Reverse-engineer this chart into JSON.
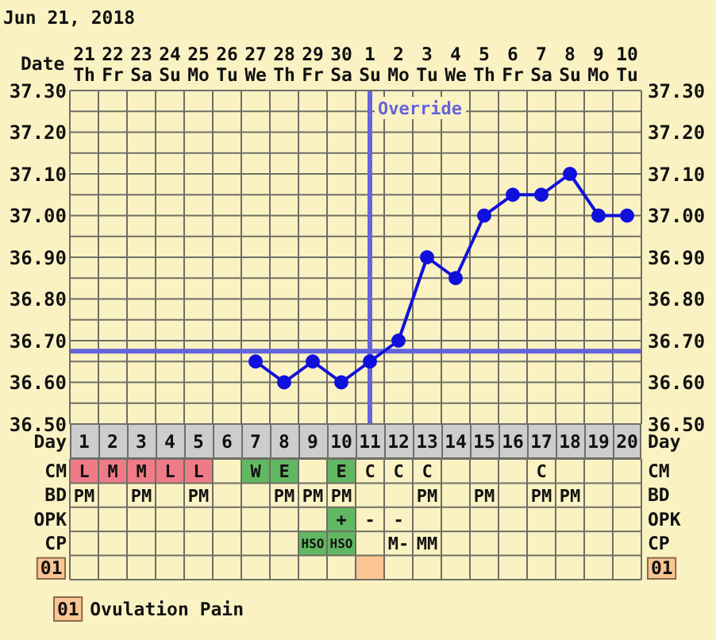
{
  "chart_data": [
    {
      "type": "line",
      "title": "Jun 21, 2018",
      "xlabel": "Day",
      "x2label": "Date",
      "x": [
        7,
        8,
        9,
        10,
        11,
        12,
        13,
        14,
        15,
        16,
        17,
        18,
        19,
        20
      ],
      "series": [
        {
          "color": "#1010dd",
          "values": [
            36.65,
            36.6,
            36.65,
            36.6,
            36.65,
            36.7,
            36.9,
            36.85,
            37.0,
            37.05,
            37.05,
            37.1,
            37.0,
            37.0
          ]
        }
      ],
      "xlim": [
        0.5,
        20.5
      ],
      "xticks": [
        1,
        2,
        3,
        4,
        5,
        6,
        7,
        8,
        9,
        10,
        11,
        12,
        13,
        14,
        15,
        16,
        17,
        18,
        19,
        20
      ],
      "x2lim": [
        "2018-06-20T12:00",
        "2018-07-10T12:00"
      ],
      "x2ticks": [
        {
          "value": "2018-06-21",
          "label": "21 Th"
        },
        {
          "value": "2018-06-22",
          "label": "22 Fr"
        },
        {
          "value": "2018-06-23",
          "label": "23 Sa"
        },
        {
          "value": "2018-06-24",
          "label": "24 Su"
        },
        {
          "value": "2018-06-25",
          "label": "25 Mo"
        },
        {
          "value": "2018-06-26",
          "label": "26 Tu"
        },
        {
          "value": "2018-06-27",
          "label": "27 We"
        },
        {
          "value": "2018-06-28",
          "label": "28 Th"
        },
        {
          "value": "2018-06-29",
          "label": "29 Fr"
        },
        {
          "value": "2018-06-30",
          "label": "30 Sa"
        },
        {
          "value": "2018-07-01",
          "label": "1 Su"
        },
        {
          "value": "2018-07-02",
          "label": "2 Mo"
        },
        {
          "value": "2018-07-03",
          "label": "3 Tu"
        },
        {
          "value": "2018-07-04",
          "label": "4 We"
        },
        {
          "value": "2018-07-05",
          "label": "5 Th"
        },
        {
          "value": "2018-07-06",
          "label": "6 Fr"
        },
        {
          "value": "2018-07-07",
          "label": "7 Sa"
        },
        {
          "value": "2018-07-08",
          "label": "8 Su"
        },
        {
          "value": "2018-07-09",
          "label": "9 Mo"
        },
        {
          "value": "2018-07-10",
          "label": "10 Tu"
        }
      ],
      "ylim": [
        36.5,
        37.3
      ],
      "yticks": [
        {
          "value": 36.5,
          "label": "36.50"
        },
        {
          "value": 36.55,
          "label": null
        },
        {
          "value": 36.6,
          "label": "36.60"
        },
        {
          "value": 36.65,
          "label": null
        },
        {
          "value": 36.7,
          "label": "36.70"
        },
        {
          "value": 36.75,
          "label": null
        },
        {
          "value": 36.8,
          "label": "36.80"
        },
        {
          "value": 36.85,
          "label": null
        },
        {
          "value": 36.9,
          "label": "36.90"
        },
        {
          "value": 36.95,
          "label": null
        },
        {
          "value": 37.0,
          "label": "37.00"
        },
        {
          "value": 37.05,
          "label": null
        },
        {
          "value": 37.1,
          "label": "37.10"
        },
        {
          "value": 37.15,
          "label": null
        },
        {
          "value": 37.2,
          "label": "37.20"
        },
        {
          "value": 37.25,
          "label": null
        },
        {
          "value": 37.3,
          "label": "37.30"
        }
      ],
      "y2lim": [
        36.5,
        37.3
      ],
      "y2ticks": [
        {
          "value": 36.5,
          "label": "36.50"
        },
        {
          "value": 36.55,
          "label": null
        },
        {
          "value": 36.6,
          "label": "36.60"
        },
        {
          "value": 36.65,
          "label": null
        },
        {
          "value": 36.7,
          "label": "36.70"
        },
        {
          "value": 36.75,
          "label": null
        },
        {
          "value": 36.8,
          "label": "36.80"
        },
        {
          "value": 36.85,
          "label": null
        },
        {
          "value": 36.9,
          "label": "36.90"
        },
        {
          "value": 36.95,
          "label": null
        },
        {
          "value": 37.0,
          "label": "37.00"
        },
        {
          "value": 37.05,
          "label": null
        },
        {
          "value": 37.1,
          "label": "37.10"
        },
        {
          "value": 37.15,
          "label": null
        },
        {
          "value": 37.2,
          "label": "37.20"
        },
        {
          "value": 37.25,
          "label": null
        },
        {
          "value": 37.3,
          "label": "37.30"
        }
      ],
      "grid": true,
      "marker": "circle",
      "ref_lines": [
        {
          "axis": "x",
          "value": 11,
          "label": "Override",
          "color": "#6464dc"
        },
        {
          "axis": "y",
          "value": 36.675,
          "label": null,
          "color": "#6464dc"
        }
      ]
    },
    {
      "type": "other",
      "y_categories": [
        "CM",
        "BD",
        "OPK",
        "CP",
        "01"
      ],
      "y2_categories": [
        "CM",
        "BD",
        "OPK",
        "CP",
        "01"
      ],
      "cell_labels": [
        [
          "L",
          "M",
          "M",
          "L",
          "L",
          null,
          "W",
          "E",
          null,
          "E",
          "C",
          "C",
          "C",
          null,
          null,
          null,
          "C",
          null,
          null,
          null
        ],
        [
          "PM",
          null,
          "PM",
          null,
          "PM",
          null,
          null,
          "PM",
          "PM",
          "PM",
          null,
          null,
          "PM",
          null,
          "PM",
          null,
          "PM",
          "PM",
          null,
          null
        ],
        [
          null,
          null,
          null,
          null,
          null,
          null,
          null,
          null,
          null,
          "+",
          "-",
          "-",
          null,
          null,
          null,
          null,
          null,
          null,
          null,
          null
        ],
        [
          null,
          null,
          null,
          null,
          null,
          null,
          null,
          null,
          "HSO",
          "HSO",
          null,
          "M-",
          "MM",
          null,
          null,
          null,
          null,
          null,
          null,
          null
        ],
        [
          null,
          null,
          null,
          null,
          null,
          null,
          null,
          null,
          null,
          null,
          null,
          null,
          null,
          null,
          null,
          null,
          null,
          null,
          null,
          null
        ]
      ],
      "colors": [
        [
          "#ef7b87",
          "#ef7b87",
          "#ef7b87",
          "#ef7b87",
          "#ef7b87",
          null,
          "#62b862",
          "#62b862",
          null,
          "#62b862",
          null,
          null,
          null,
          null,
          null,
          null,
          null,
          null,
          null,
          null
        ],
        [
          null,
          null,
          null,
          null,
          null,
          null,
          null,
          null,
          null,
          null,
          null,
          null,
          null,
          null,
          null,
          null,
          null,
          null,
          null,
          null
        ],
        [
          null,
          null,
          null,
          null,
          null,
          null,
          null,
          null,
          null,
          "#62b862",
          null,
          null,
          null,
          null,
          null,
          null,
          null,
          null,
          null,
          null
        ],
        [
          null,
          null,
          null,
          null,
          null,
          null,
          null,
          null,
          "#62b862",
          "#62b862",
          null,
          null,
          null,
          null,
          null,
          null,
          null,
          null,
          null,
          null
        ],
        [
          null,
          null,
          null,
          null,
          null,
          null,
          null,
          null,
          null,
          null,
          "#fbc593",
          null,
          null,
          null,
          null,
          null,
          null,
          null,
          null,
          null
        ]
      ],
      "annotations": [
        "Ovulation Pain"
      ]
    }
  ]
}
